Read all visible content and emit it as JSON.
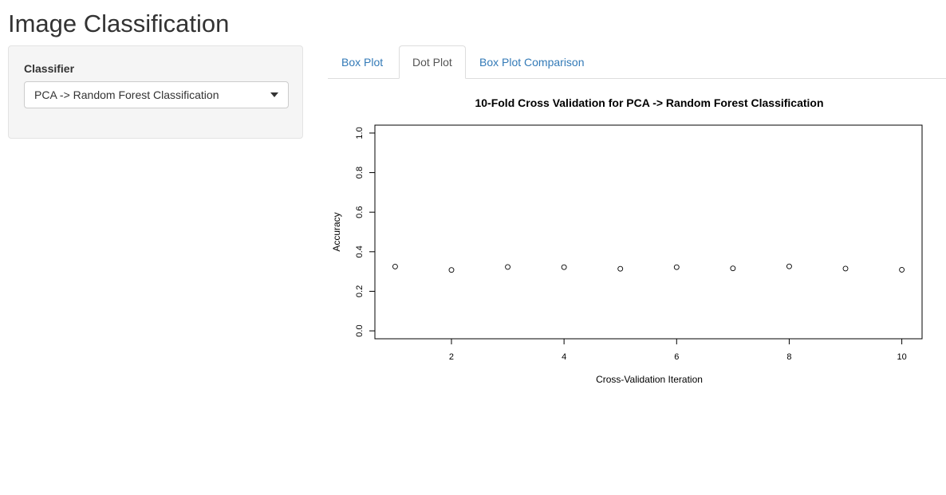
{
  "app": {
    "title": "Image Classification"
  },
  "sidebar": {
    "classifier_label": "Classifier",
    "classifier_selected": "PCA -> Random Forest Classification"
  },
  "tabs": [
    {
      "label": "Box Plot",
      "active": false
    },
    {
      "label": "Dot Plot",
      "active": true
    },
    {
      "label": "Box Plot Comparison",
      "active": false
    }
  ],
  "colors": {
    "link": "#337ab7",
    "active_tab_text": "#555555",
    "sidebar_bg": "#f5f5f5"
  },
  "chart_data": {
    "type": "scatter",
    "title": "10-Fold Cross Validation for PCA -> Random Forest Classification",
    "xlabel": "Cross-Validation Iteration",
    "ylabel": "Accuracy",
    "x": [
      1,
      2,
      3,
      4,
      5,
      6,
      7,
      8,
      9,
      10
    ],
    "y": [
      0.325,
      0.308,
      0.323,
      0.322,
      0.314,
      0.322,
      0.316,
      0.326,
      0.315,
      0.309
    ],
    "xlim": [
      0.64,
      10.36
    ],
    "ylim": [
      -0.04,
      1.04
    ],
    "xticks": [
      "2",
      "4",
      "6",
      "8",
      "10"
    ],
    "yticks": [
      "0.0",
      "0.2",
      "0.4",
      "0.6",
      "0.8",
      "1.0"
    ],
    "marker": "open-circle",
    "grid": false
  }
}
